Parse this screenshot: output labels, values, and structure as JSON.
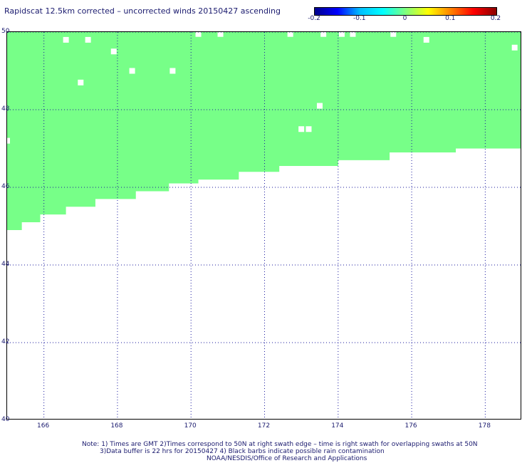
{
  "title": "Rapidscat 12.5km corrected – uncorrected winds 20150427 ascending",
  "colorbar": {
    "colors": [
      "#00008b",
      "#0000ff",
      "#00bfff",
      "#00ffff",
      "#7fff7f",
      "#ffff00",
      "#ff8000",
      "#ff0000",
      "#8b0000"
    ],
    "tick_labels": [
      "-0.2",
      "-0.1",
      "0",
      "0.1",
      "0.2"
    ],
    "tick_values": [
      -0.2,
      -0.1,
      0,
      0.1,
      0.2
    ]
  },
  "map": {
    "lon_range": [
      165,
      179
    ],
    "lat_range": [
      40,
      50
    ],
    "x_ticks": [
      "166",
      "168",
      "170",
      "172",
      "174",
      "176",
      "178"
    ],
    "x_tick_values": [
      166,
      168,
      170,
      172,
      174,
      176,
      178
    ],
    "y_ticks": [
      "50",
      "48",
      "46",
      "44",
      "42",
      "40"
    ],
    "y_tick_values": [
      50,
      48,
      46,
      44,
      42,
      40
    ],
    "grid": true,
    "swath_color": "#77ff88",
    "swath_value": 0,
    "swath_south_edge": [
      {
        "lon_start": 165.0,
        "lon_end": 165.4,
        "lat": 44.9
      },
      {
        "lon_start": 165.4,
        "lon_end": 165.9,
        "lat": 45.1
      },
      {
        "lon_start": 165.9,
        "lon_end": 166.6,
        "lat": 45.3
      },
      {
        "lon_start": 166.6,
        "lon_end": 167.4,
        "lat": 45.5
      },
      {
        "lon_start": 167.4,
        "lon_end": 168.5,
        "lat": 45.7
      },
      {
        "lon_start": 168.5,
        "lon_end": 169.4,
        "lat": 45.9
      },
      {
        "lon_start": 169.4,
        "lon_end": 170.2,
        "lat": 46.1
      },
      {
        "lon_start": 170.2,
        "lon_end": 171.3,
        "lat": 46.2
      },
      {
        "lon_start": 171.3,
        "lon_end": 172.4,
        "lat": 46.4
      },
      {
        "lon_start": 172.4,
        "lon_end": 174.0,
        "lat": 46.55
      },
      {
        "lon_start": 174.0,
        "lon_end": 175.4,
        "lat": 46.7
      },
      {
        "lon_start": 175.4,
        "lon_end": 177.2,
        "lat": 46.9
      },
      {
        "lon_start": 177.2,
        "lon_end": 179.0,
        "lat": 47.0
      }
    ],
    "swath_north_lat": 50.0,
    "gaps": [
      {
        "lon": 166.6,
        "lat": 49.8
      },
      {
        "lon": 167.2,
        "lat": 49.8
      },
      {
        "lon": 167.9,
        "lat": 49.5
      },
      {
        "lon": 168.4,
        "lat": 49.0
      },
      {
        "lon": 169.5,
        "lat": 49.0
      },
      {
        "lon": 167.0,
        "lat": 48.7
      },
      {
        "lon": 170.2,
        "lat": 49.95
      },
      {
        "lon": 170.8,
        "lat": 49.95
      },
      {
        "lon": 172.7,
        "lat": 49.95
      },
      {
        "lon": 173.6,
        "lat": 49.95
      },
      {
        "lon": 174.1,
        "lat": 49.95
      },
      {
        "lon": 174.4,
        "lat": 49.95
      },
      {
        "lon": 175.5,
        "lat": 49.95
      },
      {
        "lon": 176.4,
        "lat": 49.8
      },
      {
        "lon": 178.8,
        "lat": 49.6
      },
      {
        "lon": 173.5,
        "lat": 48.1
      },
      {
        "lon": 173.0,
        "lat": 47.5
      },
      {
        "lon": 173.2,
        "lat": 47.5
      },
      {
        "lon": 165.0,
        "lat": 47.2
      }
    ]
  },
  "notes": {
    "line1": "Note: 1) Times are GMT 2)Times correspond to 50N at right swath edge – time is right swath for overlapping swaths at 50N",
    "line2": "3)Data buffer is 22 hrs for 20150427 4) Black barbs indicate possible rain contamination",
    "line3": "NOAA/NESDIS/Office of Research and Applications"
  }
}
